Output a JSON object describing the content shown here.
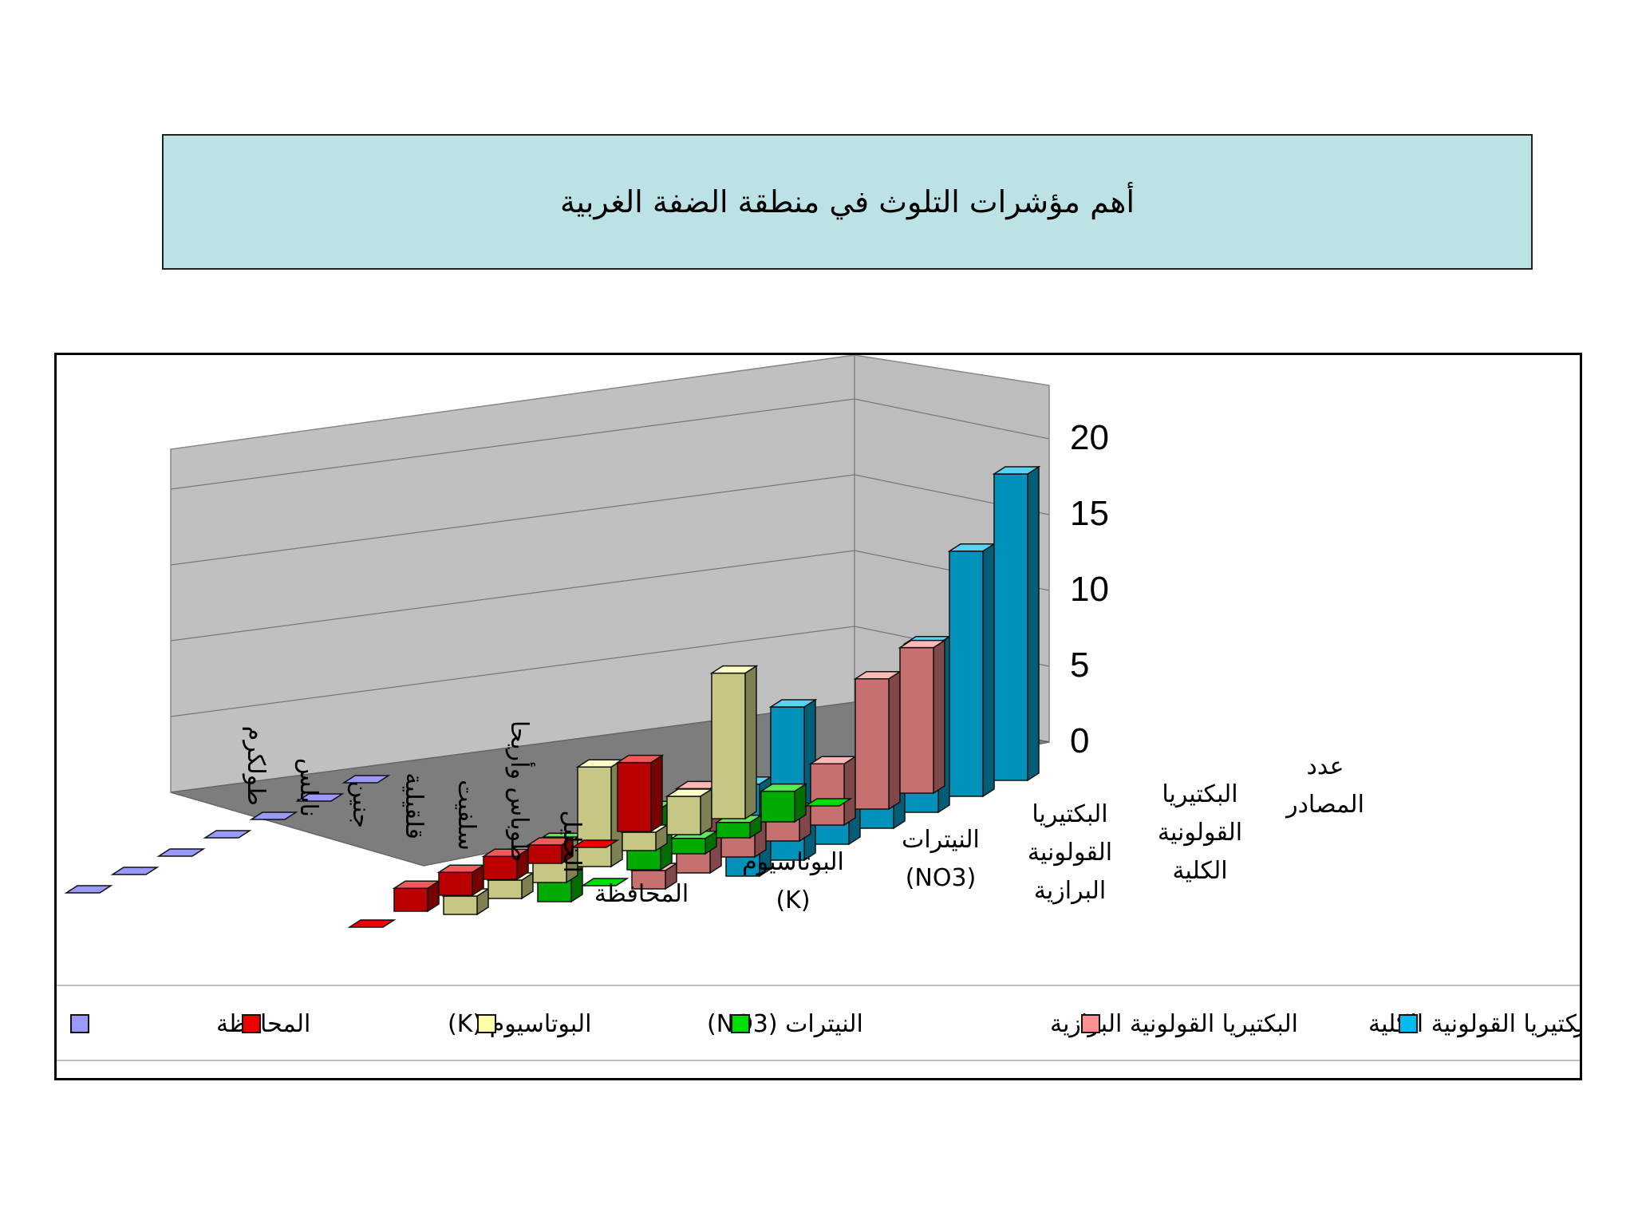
{
  "slide": {
    "title": "أهم مؤشرات التلوث في منطقة الضفة الغربية"
  },
  "chart_data": {
    "type": "bar",
    "style": "3d-column",
    "title": "",
    "ylim": [
      0,
      20
    ],
    "yticks": [
      "0",
      "5",
      "10",
      "15",
      "20"
    ],
    "grid": true,
    "legend_position": "bottom",
    "categories": [
      [
        "المحافظة"
      ],
      [
        "البوتاسيوم",
        "(K)"
      ],
      [
        "النيترات",
        "(NO3)"
      ],
      [
        "البكتيريا",
        "القولونية",
        "البرازية"
      ],
      [
        "البكتيريا",
        "القولونية",
        "الكلية"
      ],
      [
        "عدد",
        "المصادر"
      ]
    ],
    "series": [
      {
        "name": "طولكرم",
        "values": [
          0,
          4.5,
          9.5,
          0,
          9.5,
          20
        ]
      },
      {
        "name": "نابلس",
        "values": [
          0,
          0,
          2.5,
          2,
          8.5,
          16
        ]
      },
      {
        "name": "جنين",
        "values": [
          0,
          1.2,
          1.2,
          1,
          4,
          11
        ]
      },
      {
        "name": "قلقيلية",
        "values": [
          0,
          1.5,
          6.5,
          1,
          2,
          9
        ]
      },
      {
        "name": "سلفيت",
        "values": [
          0,
          1.5,
          2.5,
          4,
          2,
          2
        ]
      },
      {
        "name": "طوباس وأريحا",
        "values": [
          0,
          1.5,
          1.2,
          0,
          5.5,
          10
        ]
      },
      {
        "name": "الخليل",
        "values": [
          0,
          0,
          1.2,
          4,
          1.2,
          6
        ]
      }
    ],
    "legend": [
      {
        "label": "المحافظة",
        "color": "#9999ff"
      },
      {
        "label": "البوتاسيوم (K)",
        "color": "#ee0000"
      },
      {
        "label": "النيترات (NO3)",
        "color": "#ffffaa"
      },
      {
        "label": "البكتيريا القولونية البرازية",
        "color": "#00dd00"
      },
      {
        "label": "البكتيريا القولونية الكلية",
        "color": "#ff9090"
      },
      {
        "label": "عدد المصادر",
        "color": "#00bbee"
      }
    ]
  }
}
